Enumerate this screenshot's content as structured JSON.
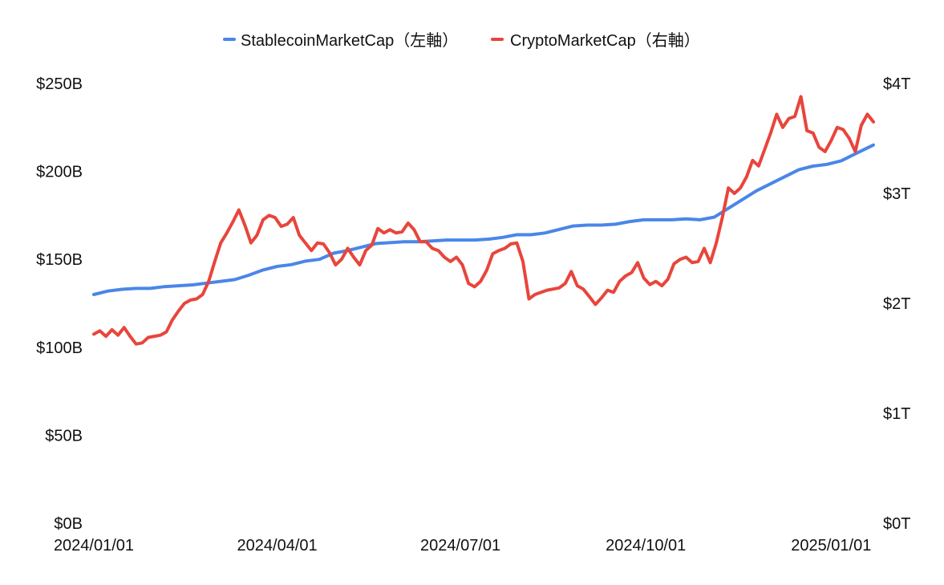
{
  "chart_data": {
    "type": "line",
    "title": "",
    "legend_position": "top-center",
    "grid": false,
    "x": {
      "type": "date",
      "min": "2024-01-01",
      "max": "2025-01-22",
      "tick_labels": [
        "2024/01/01",
        "2024/04/01",
        "2024/07/01",
        "2024/10/01",
        "2025/01/01"
      ],
      "tick_dates": [
        "2024-01-01",
        "2024-04-01",
        "2024-07-01",
        "2024-10-01",
        "2025-01-01"
      ]
    },
    "y_left": {
      "label": "",
      "unit": "billion USD",
      "range": [
        0,
        250
      ],
      "tick_values": [
        0,
        50,
        100,
        150,
        200,
        250
      ],
      "tick_labels": [
        "$0B",
        "$50B",
        "$100B",
        "$150B",
        "$200B",
        "$250B"
      ]
    },
    "y_right": {
      "label": "",
      "unit": "trillion USD",
      "range": [
        0,
        4
      ],
      "tick_values": [
        0,
        1,
        2,
        3,
        4
      ],
      "tick_labels": [
        "$0T",
        "$1T",
        "$2T",
        "$3T",
        "$4T"
      ]
    },
    "series": [
      {
        "name": "StablecoinMarketCap（左軸）",
        "axis": "left",
        "color": "#4a86e8",
        "points": [
          [
            "2024-01-01",
            130
          ],
          [
            "2024-01-08",
            132
          ],
          [
            "2024-01-15",
            133
          ],
          [
            "2024-01-22",
            133.5
          ],
          [
            "2024-01-29",
            133.5
          ],
          [
            "2024-02-05",
            134.5
          ],
          [
            "2024-02-12",
            135
          ],
          [
            "2024-02-19",
            135.5
          ],
          [
            "2024-02-26",
            136.5
          ],
          [
            "2024-03-04",
            137.5
          ],
          [
            "2024-03-11",
            138.5
          ],
          [
            "2024-03-18",
            141
          ],
          [
            "2024-03-25",
            144
          ],
          [
            "2024-04-01",
            146
          ],
          [
            "2024-04-08",
            147
          ],
          [
            "2024-04-15",
            149
          ],
          [
            "2024-04-22",
            150
          ],
          [
            "2024-04-29",
            153.5
          ],
          [
            "2024-05-06",
            155
          ],
          [
            "2024-05-13",
            157
          ],
          [
            "2024-05-20",
            159
          ],
          [
            "2024-05-27",
            159.5
          ],
          [
            "2024-06-03",
            160
          ],
          [
            "2024-06-10",
            160
          ],
          [
            "2024-06-17",
            160.5
          ],
          [
            "2024-06-24",
            161
          ],
          [
            "2024-07-01",
            161
          ],
          [
            "2024-07-08",
            161
          ],
          [
            "2024-07-15",
            161.5
          ],
          [
            "2024-07-22",
            162.5
          ],
          [
            "2024-07-29",
            164
          ],
          [
            "2024-08-05",
            164
          ],
          [
            "2024-08-12",
            165
          ],
          [
            "2024-08-19",
            167
          ],
          [
            "2024-08-26",
            169
          ],
          [
            "2024-09-02",
            169.5
          ],
          [
            "2024-09-09",
            169.5
          ],
          [
            "2024-09-16",
            170
          ],
          [
            "2024-09-23",
            171.5
          ],
          [
            "2024-09-30",
            172.5
          ],
          [
            "2024-10-07",
            172.5
          ],
          [
            "2024-10-14",
            172.5
          ],
          [
            "2024-10-21",
            173
          ],
          [
            "2024-10-28",
            172.5
          ],
          [
            "2024-11-04",
            174
          ],
          [
            "2024-11-11",
            179
          ],
          [
            "2024-11-18",
            184
          ],
          [
            "2024-11-25",
            189
          ],
          [
            "2024-12-02",
            193
          ],
          [
            "2024-12-09",
            197
          ],
          [
            "2024-12-16",
            201
          ],
          [
            "2024-12-23",
            203
          ],
          [
            "2024-12-30",
            204
          ],
          [
            "2025-01-06",
            206
          ],
          [
            "2025-01-13",
            210
          ],
          [
            "2025-01-22",
            215
          ]
        ]
      },
      {
        "name": "CryptoMarketCap（右軸）",
        "axis": "right",
        "color": "#e8453c",
        "points": [
          [
            "2024-01-01",
            1.72
          ],
          [
            "2024-01-04",
            1.75
          ],
          [
            "2024-01-07",
            1.7
          ],
          [
            "2024-01-10",
            1.76
          ],
          [
            "2024-01-13",
            1.71
          ],
          [
            "2024-01-16",
            1.78
          ],
          [
            "2024-01-19",
            1.7
          ],
          [
            "2024-01-22",
            1.63
          ],
          [
            "2024-01-25",
            1.64
          ],
          [
            "2024-01-28",
            1.69
          ],
          [
            "2024-01-31",
            1.7
          ],
          [
            "2024-02-03",
            1.71
          ],
          [
            "2024-02-06",
            1.74
          ],
          [
            "2024-02-09",
            1.85
          ],
          [
            "2024-02-12",
            1.93
          ],
          [
            "2024-02-15",
            2.0
          ],
          [
            "2024-02-18",
            2.03
          ],
          [
            "2024-02-21",
            2.04
          ],
          [
            "2024-02-24",
            2.08
          ],
          [
            "2024-02-27",
            2.2
          ],
          [
            "2024-03-01",
            2.38
          ],
          [
            "2024-03-04",
            2.55
          ],
          [
            "2024-03-07",
            2.64
          ],
          [
            "2024-03-10",
            2.74
          ],
          [
            "2024-03-13",
            2.85
          ],
          [
            "2024-03-16",
            2.71
          ],
          [
            "2024-03-19",
            2.55
          ],
          [
            "2024-03-22",
            2.62
          ],
          [
            "2024-03-25",
            2.76
          ],
          [
            "2024-03-28",
            2.8
          ],
          [
            "2024-03-31",
            2.78
          ],
          [
            "2024-04-03",
            2.7
          ],
          [
            "2024-04-06",
            2.72
          ],
          [
            "2024-04-09",
            2.78
          ],
          [
            "2024-04-12",
            2.62
          ],
          [
            "2024-04-15",
            2.55
          ],
          [
            "2024-04-18",
            2.48
          ],
          [
            "2024-04-21",
            2.55
          ],
          [
            "2024-04-24",
            2.54
          ],
          [
            "2024-04-27",
            2.46
          ],
          [
            "2024-04-30",
            2.35
          ],
          [
            "2024-05-03",
            2.4
          ],
          [
            "2024-05-06",
            2.5
          ],
          [
            "2024-05-09",
            2.42
          ],
          [
            "2024-05-12",
            2.35
          ],
          [
            "2024-05-15",
            2.48
          ],
          [
            "2024-05-18",
            2.53
          ],
          [
            "2024-05-21",
            2.68
          ],
          [
            "2024-05-24",
            2.64
          ],
          [
            "2024-05-27",
            2.67
          ],
          [
            "2024-05-30",
            2.64
          ],
          [
            "2024-06-02",
            2.65
          ],
          [
            "2024-06-05",
            2.73
          ],
          [
            "2024-06-08",
            2.67
          ],
          [
            "2024-06-11",
            2.56
          ],
          [
            "2024-06-14",
            2.56
          ],
          [
            "2024-06-17",
            2.5
          ],
          [
            "2024-06-20",
            2.48
          ],
          [
            "2024-06-23",
            2.42
          ],
          [
            "2024-06-26",
            2.38
          ],
          [
            "2024-06-29",
            2.42
          ],
          [
            "2024-07-02",
            2.35
          ],
          [
            "2024-07-05",
            2.18
          ],
          [
            "2024-07-08",
            2.15
          ],
          [
            "2024-07-11",
            2.2
          ],
          [
            "2024-07-14",
            2.3
          ],
          [
            "2024-07-17",
            2.45
          ],
          [
            "2024-07-20",
            2.48
          ],
          [
            "2024-07-23",
            2.5
          ],
          [
            "2024-07-26",
            2.54
          ],
          [
            "2024-07-29",
            2.55
          ],
          [
            "2024-08-01",
            2.38
          ],
          [
            "2024-08-04",
            2.04
          ],
          [
            "2024-08-07",
            2.08
          ],
          [
            "2024-08-10",
            2.1
          ],
          [
            "2024-08-13",
            2.12
          ],
          [
            "2024-08-16",
            2.13
          ],
          [
            "2024-08-19",
            2.14
          ],
          [
            "2024-08-22",
            2.18
          ],
          [
            "2024-08-25",
            2.29
          ],
          [
            "2024-08-28",
            2.16
          ],
          [
            "2024-08-31",
            2.13
          ],
          [
            "2024-09-03",
            2.06
          ],
          [
            "2024-09-06",
            1.99
          ],
          [
            "2024-09-09",
            2.05
          ],
          [
            "2024-09-12",
            2.12
          ],
          [
            "2024-09-15",
            2.1
          ],
          [
            "2024-09-18",
            2.2
          ],
          [
            "2024-09-21",
            2.25
          ],
          [
            "2024-09-24",
            2.28
          ],
          [
            "2024-09-27",
            2.37
          ],
          [
            "2024-09-30",
            2.23
          ],
          [
            "2024-10-03",
            2.17
          ],
          [
            "2024-10-06",
            2.2
          ],
          [
            "2024-10-09",
            2.16
          ],
          [
            "2024-10-12",
            2.22
          ],
          [
            "2024-10-15",
            2.36
          ],
          [
            "2024-10-18",
            2.4
          ],
          [
            "2024-10-21",
            2.42
          ],
          [
            "2024-10-24",
            2.37
          ],
          [
            "2024-10-27",
            2.38
          ],
          [
            "2024-10-30",
            2.5
          ],
          [
            "2024-11-02",
            2.37
          ],
          [
            "2024-11-05",
            2.55
          ],
          [
            "2024-11-08",
            2.78
          ],
          [
            "2024-11-11",
            3.05
          ],
          [
            "2024-11-14",
            3.0
          ],
          [
            "2024-11-17",
            3.05
          ],
          [
            "2024-11-20",
            3.15
          ],
          [
            "2024-11-23",
            3.3
          ],
          [
            "2024-11-26",
            3.25
          ],
          [
            "2024-11-29",
            3.4
          ],
          [
            "2024-12-02",
            3.55
          ],
          [
            "2024-12-05",
            3.72
          ],
          [
            "2024-12-08",
            3.6
          ],
          [
            "2024-12-11",
            3.68
          ],
          [
            "2024-12-14",
            3.7
          ],
          [
            "2024-12-17",
            3.88
          ],
          [
            "2024-12-20",
            3.57
          ],
          [
            "2024-12-23",
            3.55
          ],
          [
            "2024-12-26",
            3.42
          ],
          [
            "2024-12-29",
            3.38
          ],
          [
            "2025-01-01",
            3.48
          ],
          [
            "2025-01-04",
            3.6
          ],
          [
            "2025-01-07",
            3.58
          ],
          [
            "2025-01-10",
            3.5
          ],
          [
            "2025-01-13",
            3.38
          ],
          [
            "2025-01-16",
            3.62
          ],
          [
            "2025-01-19",
            3.72
          ],
          [
            "2025-01-22",
            3.65
          ]
        ]
      }
    ]
  }
}
